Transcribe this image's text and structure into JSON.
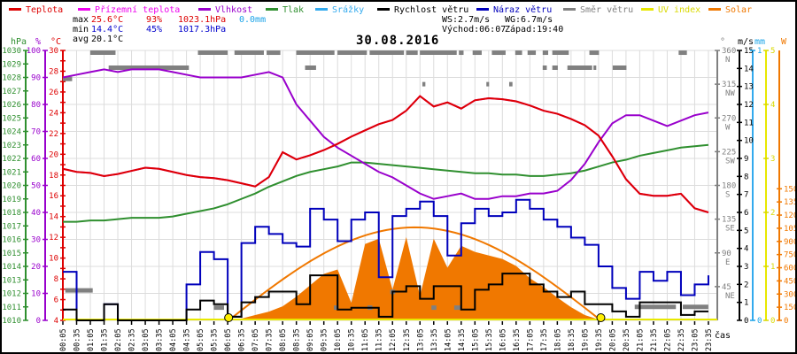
{
  "title": "30.08.2016",
  "legend": {
    "items": [
      {
        "label": "Teplota",
        "color": "#dd0000"
      },
      {
        "label": "Přízemní teplota",
        "color": "#ee00ee"
      },
      {
        "label": "Vlhkost",
        "color": "#9900cc"
      },
      {
        "label": "Tlak",
        "color": "#2f8f2f"
      },
      {
        "label": "Srážky",
        "color": "#33aaee"
      },
      {
        "label": "Rychlost větru",
        "color": "#000000"
      },
      {
        "label": "Náraz větru",
        "color": "#0000bb"
      },
      {
        "label": "Směr větru",
        "color": "#808080"
      },
      {
        "label": "UV index",
        "color": "#e8e800"
      },
      {
        "label": "Solar",
        "color": "#f07800"
      }
    ]
  },
  "stats": {
    "max": {
      "label": "max",
      "temp": "25.6°C",
      "humidity": "93%",
      "pressure": "1023.1hPa",
      "rain": "0.0mm"
    },
    "min": {
      "label": "min",
      "temp": "14.4°C",
      "humidity": "45%",
      "pressure": "1017.3hPa"
    },
    "avg": {
      "label": "avg",
      "temp": "20.1°C"
    },
    "wind": {
      "ws": "WS:2.7m/s",
      "wg": "WG:6.7m/s"
    },
    "sun": {
      "sunrise": "Východ:06:07",
      "sunset": "Západ:19:40"
    }
  },
  "axes": {
    "hpa": {
      "unit": "hPa",
      "color": "#2f8f2f",
      "labels": [
        1030,
        1029,
        1028,
        1027,
        1026,
        1025,
        1024,
        1023,
        1022,
        1021,
        1020,
        1019,
        1018,
        1017,
        1016,
        1015,
        1014,
        1013,
        1012,
        1011,
        1010
      ],
      "range": [
        1010,
        1030
      ]
    },
    "pct": {
      "unit": "%",
      "color": "#9900cc",
      "labels": [
        100,
        90,
        80,
        70,
        60,
        50,
        40,
        30,
        20,
        10,
        0
      ],
      "range": [
        0,
        100
      ]
    },
    "temp": {
      "unit": "°C",
      "color": "#dd0000",
      "labels": [
        30,
        28,
        26,
        24,
        22,
        20,
        18,
        16,
        14,
        12,
        10,
        8,
        6,
        4
      ],
      "range": [
        4,
        30
      ]
    },
    "deg": {
      "unit": "°",
      "color": "#808080",
      "labels": [
        {
          "v": 360,
          "d": "N"
        },
        {
          "v": 315,
          "d": "NW"
        },
        {
          "v": 270,
          "d": "W"
        },
        {
          "v": 225,
          "d": "SW"
        },
        {
          "v": 180,
          "d": "S"
        },
        {
          "v": 135,
          "d": "SE"
        },
        {
          "v": 90,
          "d": "E"
        },
        {
          "v": 45,
          "d": "NE"
        }
      ],
      "range": [
        0,
        360
      ]
    },
    "ms": {
      "unit": "m/s",
      "color": "#000000",
      "labels": [
        15,
        14,
        13,
        12,
        11,
        10,
        9,
        8,
        7,
        6,
        5,
        4,
        3,
        2,
        1,
        0
      ],
      "range": [
        0,
        15
      ]
    },
    "mm": {
      "unit": "mm",
      "color": "#33aaee",
      "labels": [
        1,
        0
      ],
      "range": [
        0,
        1
      ]
    },
    "uv": {
      "unit": "",
      "color": "#d9d900",
      "labels": [
        5,
        4,
        3,
        2,
        1,
        0
      ],
      "range": [
        0,
        5
      ]
    },
    "w": {
      "unit": "W",
      "color": "#f07800",
      "labels": [
        1500,
        1350,
        1200,
        1050,
        900,
        750,
        600,
        450,
        300,
        150,
        0
      ],
      "range": [
        0,
        1500
      ]
    },
    "time": {
      "unit": "čas"
    }
  },
  "chart_data": {
    "type": "line",
    "title": "30.08.2016",
    "x_tick_interval_min": 30,
    "time_labels": [
      "00:05",
      "00:35",
      "01:05",
      "01:35",
      "02:05",
      "02:35",
      "03:05",
      "03:35",
      "04:05",
      "04:35",
      "05:05",
      "05:35",
      "06:05",
      "06:35",
      "07:05",
      "07:35",
      "08:05",
      "08:35",
      "09:05",
      "09:35",
      "10:05",
      "10:35",
      "11:05",
      "11:35",
      "12:05",
      "12:35",
      "13:05",
      "13:35",
      "14:05",
      "14:35",
      "15:05",
      "15:35",
      "16:05",
      "16:35",
      "17:05",
      "17:35",
      "18:05",
      "18:35",
      "19:05",
      "19:35",
      "20:05",
      "20:35",
      "21:05",
      "21:35",
      "22:05",
      "22:35",
      "23:05",
      "23:35"
    ],
    "series": [
      {
        "name": "Teplota",
        "unit": "°C",
        "axis": "temp",
        "color": "#dd0000",
        "style": "line",
        "values": [
          18.6,
          18.3,
          18.2,
          17.9,
          18.1,
          18.4,
          18.7,
          18.6,
          18.3,
          18.0,
          17.8,
          17.7,
          17.5,
          17.2,
          16.9,
          17.8,
          20.2,
          19.5,
          19.9,
          20.4,
          21.0,
          21.7,
          22.3,
          22.9,
          23.3,
          24.2,
          25.6,
          24.6,
          25.0,
          24.4,
          25.2,
          25.4,
          25.3,
          25.1,
          24.7,
          24.2,
          23.9,
          23.4,
          22.8,
          21.8,
          19.8,
          17.6,
          16.2,
          16.0,
          16.0,
          16.2,
          14.8,
          14.4
        ]
      },
      {
        "name": "Přízemní teplota",
        "unit": "°C",
        "axis": "temp",
        "color": "#ee00ee",
        "style": "line",
        "note": "overlaps Teplota, not separately visible",
        "values": [
          18.6,
          18.3,
          18.2,
          17.9,
          18.1,
          18.4,
          18.7,
          18.6,
          18.3,
          18.0,
          17.8,
          17.7,
          17.5,
          17.2,
          16.9,
          17.8,
          20.2,
          19.5,
          19.9,
          20.4,
          21.0,
          21.7,
          22.3,
          22.9,
          23.3,
          24.2,
          25.6,
          24.6,
          25.0,
          24.4,
          25.2,
          25.4,
          25.3,
          25.1,
          24.7,
          24.2,
          23.9,
          23.4,
          22.8,
          21.8,
          19.8,
          17.6,
          16.2,
          16.0,
          16.0,
          16.2,
          14.8,
          14.4
        ]
      },
      {
        "name": "Vlhkost",
        "unit": "%",
        "axis": "pct",
        "color": "#9900cc",
        "style": "line",
        "values": [
          90,
          91,
          92,
          93,
          92,
          93,
          93,
          93,
          92,
          91,
          90,
          90,
          90,
          90,
          91,
          92,
          90,
          80,
          74,
          68,
          64,
          61,
          58,
          55,
          53,
          50,
          47,
          45,
          46,
          47,
          45,
          45,
          46,
          46,
          47,
          47,
          48,
          52,
          58,
          66,
          73,
          76,
          76,
          74,
          72,
          74,
          76,
          77
        ]
      },
      {
        "name": "Tlak",
        "unit": "hPa",
        "axis": "hpa",
        "color": "#2f8f2f",
        "style": "line",
        "values": [
          1017.3,
          1017.3,
          1017.4,
          1017.4,
          1017.5,
          1017.6,
          1017.6,
          1017.6,
          1017.7,
          1017.9,
          1018.1,
          1018.3,
          1018.6,
          1019.0,
          1019.4,
          1019.9,
          1020.3,
          1020.7,
          1021.0,
          1021.2,
          1021.4,
          1021.7,
          1021.7,
          1021.6,
          1021.5,
          1021.4,
          1021.3,
          1021.2,
          1021.1,
          1021.0,
          1020.9,
          1020.9,
          1020.8,
          1020.8,
          1020.7,
          1020.7,
          1020.8,
          1020.9,
          1021.1,
          1021.4,
          1021.7,
          1021.9,
          1022.2,
          1022.4,
          1022.6,
          1022.8,
          1022.9,
          1023.0
        ]
      },
      {
        "name": "Srážky",
        "unit": "mm",
        "axis": "mm",
        "color": "#33aaee",
        "style": "line",
        "values": [
          0,
          0,
          0,
          0,
          0,
          0,
          0,
          0,
          0,
          0,
          0,
          0,
          0,
          0,
          0,
          0,
          0,
          0,
          0,
          0,
          0,
          0,
          0,
          0,
          0,
          0,
          0,
          0,
          0,
          0,
          0,
          0,
          0,
          0,
          0,
          0,
          0,
          0,
          0,
          0,
          0,
          0,
          0,
          0,
          0,
          0,
          0,
          0
        ]
      },
      {
        "name": "Rychlost větru",
        "unit": "m/s",
        "axis": "ms",
        "color": "#000000",
        "style": "step",
        "values": [
          0.6,
          0,
          0,
          0.9,
          0,
          0,
          0,
          0,
          0,
          0.6,
          1.1,
          0.9,
          0.2,
          1.0,
          1.3,
          1.6,
          1.6,
          0.9,
          2.5,
          2.5,
          0.6,
          0.7,
          0.7,
          0.2,
          1.6,
          1.9,
          1.2,
          1.9,
          1.9,
          0.6,
          1.7,
          2.0,
          2.6,
          2.6,
          2.0,
          1.6,
          1.3,
          1.6,
          0.9,
          0.9,
          0.5,
          0.2,
          1.0,
          1.0,
          1.0,
          0.3,
          0.5,
          0.5
        ]
      },
      {
        "name": "Náraz větru",
        "unit": "m/s",
        "axis": "ms",
        "color": "#0000bb",
        "style": "step",
        "values": [
          2.7,
          0,
          0,
          0.9,
          0,
          0,
          0,
          0,
          0,
          2.0,
          3.8,
          3.4,
          0.2,
          4.3,
          5.2,
          4.8,
          4.3,
          4.1,
          6.2,
          5.6,
          4.4,
          5.6,
          6.0,
          2.4,
          5.8,
          6.2,
          6.6,
          5.8,
          3.6,
          5.4,
          6.2,
          5.8,
          6.0,
          6.7,
          6.2,
          5.6,
          5.2,
          4.6,
          4.2,
          3.0,
          1.8,
          1.2,
          2.7,
          2.2,
          2.7,
          1.4,
          2.0,
          2.5
        ]
      },
      {
        "name": "UV index",
        "unit": "",
        "axis": "uv",
        "color": "#e8e800",
        "style": "line",
        "values": [
          0,
          0,
          0,
          0,
          0,
          0,
          0,
          0,
          0,
          0,
          0,
          0,
          0,
          0,
          0,
          0,
          0,
          0,
          0,
          0,
          0,
          0,
          0,
          0,
          0,
          0,
          0,
          0,
          0,
          0,
          0,
          0,
          0,
          0,
          0,
          0,
          0,
          0,
          0,
          0,
          0,
          0,
          0,
          0,
          0,
          0,
          0,
          0
        ]
      },
      {
        "name": "Solar",
        "unit": "W",
        "axis": "w",
        "color": "#f07800",
        "style": "area",
        "values": [
          0,
          0,
          0,
          0,
          0,
          0,
          0,
          0,
          0,
          0,
          0,
          0,
          5,
          20,
          60,
          100,
          160,
          270,
          400,
          530,
          580,
          200,
          870,
          930,
          350,
          950,
          280,
          930,
          600,
          850,
          780,
          740,
          700,
          620,
          480,
          380,
          260,
          150,
          60,
          10,
          0,
          0,
          0,
          0,
          0,
          0,
          0,
          0
        ]
      }
    ],
    "clear_sky_curve": {
      "name": "Solar clear-sky arc",
      "color": "#f07800",
      "peak_w": 1060,
      "start_h": 6.117,
      "end_h": 19.667
    },
    "wind_direction_segments": [
      [
        0.08,
        0.42,
        322
      ],
      [
        0.17,
        1.17,
        40
      ],
      [
        1.08,
        2.0,
        357
      ],
      [
        1.75,
        4.67,
        337
      ],
      [
        5.0,
        6.08,
        357
      ],
      [
        5.58,
        5.95,
        17
      ],
      [
        6.33,
        7.4,
        357
      ],
      [
        7.5,
        8.0,
        357
      ],
      [
        8.58,
        9.97,
        357
      ],
      [
        8.9,
        9.3,
        337
      ],
      [
        9.95,
        10.12,
        17
      ],
      [
        10.08,
        11.15,
        357
      ],
      [
        11.17,
        11.35,
        17
      ],
      [
        11.25,
        12.5,
        357
      ],
      [
        12.0,
        12.18,
        38
      ],
      [
        12.58,
        13.0,
        357
      ],
      [
        13.08,
        14.42,
        357
      ],
      [
        13.17,
        13.28,
        315
      ],
      [
        13.5,
        13.68,
        17
      ],
      [
        14.33,
        14.58,
        17
      ],
      [
        14.5,
        14.67,
        357
      ],
      [
        15.0,
        15.33,
        357
      ],
      [
        15.5,
        15.6,
        315
      ],
      [
        15.7,
        16.2,
        357
      ],
      [
        16.33,
        16.45,
        315
      ],
      [
        16.55,
        16.8,
        357
      ],
      [
        17.0,
        17.3,
        357
      ],
      [
        17.55,
        17.75,
        357
      ],
      [
        17.9,
        18.5,
        357
      ],
      [
        19.25,
        19.6,
        357
      ],
      [
        22.5,
        22.8,
        357
      ],
      [
        17.55,
        17.7,
        337
      ],
      [
        17.9,
        18.1,
        337
      ],
      [
        18.45,
        19.35,
        337
      ],
      [
        19.4,
        19.5,
        337
      ],
      [
        20.1,
        20.6,
        337
      ],
      [
        20.9,
        22.4,
        18
      ],
      [
        22.65,
        23.58,
        18
      ]
    ],
    "sun_markers": {
      "sunrise_h": 6.117,
      "sunset_h": 19.667,
      "color": "#ffee00"
    }
  }
}
